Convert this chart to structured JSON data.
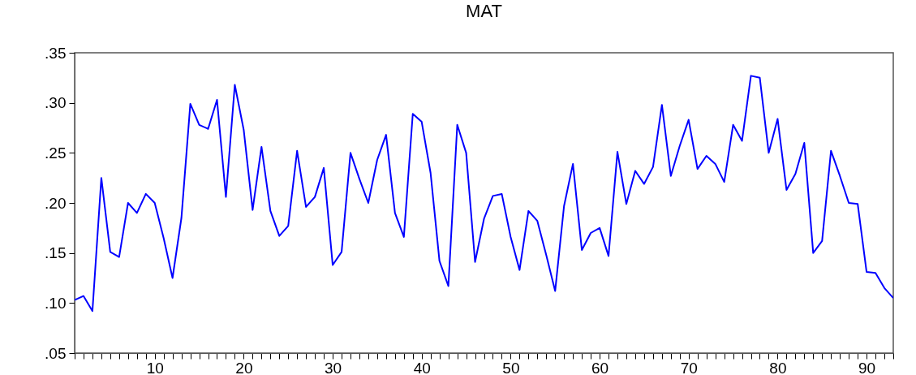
{
  "chart_data": {
    "type": "line",
    "title": "MAT",
    "x": [
      1,
      2,
      3,
      4,
      5,
      6,
      7,
      8,
      9,
      10,
      11,
      12,
      13,
      14,
      15,
      16,
      17,
      18,
      19,
      20,
      21,
      22,
      23,
      24,
      25,
      26,
      27,
      28,
      29,
      30,
      31,
      32,
      33,
      34,
      35,
      36,
      37,
      38,
      39,
      40,
      41,
      42,
      43,
      44,
      45,
      46,
      47,
      48,
      49,
      50,
      51,
      52,
      53,
      54,
      55,
      56,
      57,
      58,
      59,
      60,
      61,
      62,
      63,
      64,
      65,
      66,
      67,
      68,
      69,
      70,
      71,
      72,
      73,
      74,
      75,
      76,
      77,
      78,
      79,
      80,
      81,
      82,
      83,
      84,
      85,
      86,
      87,
      88,
      89,
      90,
      91,
      92,
      93
    ],
    "series": [
      {
        "color": "#0000ff",
        "values": [
          0.103,
          0.107,
          0.092,
          0.225,
          0.151,
          0.146,
          0.2,
          0.19,
          0.209,
          0.2,
          0.165,
          0.125,
          0.185,
          0.299,
          0.278,
          0.274,
          0.303,
          0.206,
          0.318,
          0.273,
          0.193,
          0.256,
          0.192,
          0.167,
          0.177,
          0.252,
          0.196,
          0.206,
          0.235,
          0.138,
          0.151,
          0.25,
          0.224,
          0.2,
          0.243,
          0.268,
          0.19,
          0.166,
          0.289,
          0.281,
          0.23,
          0.142,
          0.117,
          0.278,
          0.25,
          0.141,
          0.184,
          0.207,
          0.209,
          0.166,
          0.133,
          0.192,
          0.182,
          0.148,
          0.112,
          0.197,
          0.239,
          0.153,
          0.17,
          0.175,
          0.147,
          0.251,
          0.199,
          0.232,
          0.219,
          0.236,
          0.298,
          0.227,
          0.257,
          0.283,
          0.234,
          0.247,
          0.239,
          0.221,
          0.278,
          0.262,
          0.327,
          0.325,
          0.25,
          0.284,
          0.213,
          0.229,
          0.26,
          0.15,
          0.162,
          0.252,
          0.227,
          0.2,
          0.199,
          0.131,
          0.13,
          0.115,
          0.105
        ]
      }
    ],
    "xlim": [
      1,
      93
    ],
    "xticks": [
      {
        "value": 1,
        "label": null
      },
      {
        "value": 2,
        "label": null
      },
      {
        "value": 3,
        "label": null
      },
      {
        "value": 4,
        "label": null
      },
      {
        "value": 5,
        "label": null
      },
      {
        "value": 6,
        "label": null
      },
      {
        "value": 7,
        "label": null
      },
      {
        "value": 8,
        "label": null
      },
      {
        "value": 9,
        "label": null
      },
      10,
      {
        "value": 11,
        "label": null
      },
      {
        "value": 12,
        "label": null
      },
      {
        "value": 13,
        "label": null
      },
      {
        "value": 14,
        "label": null
      },
      {
        "value": 15,
        "label": null
      },
      {
        "value": 16,
        "label": null
      },
      {
        "value": 17,
        "label": null
      },
      {
        "value": 18,
        "label": null
      },
      {
        "value": 19,
        "label": null
      },
      20,
      {
        "value": 21,
        "label": null
      },
      {
        "value": 22,
        "label": null
      },
      {
        "value": 23,
        "label": null
      },
      {
        "value": 24,
        "label": null
      },
      {
        "value": 25,
        "label": null
      },
      {
        "value": 26,
        "label": null
      },
      {
        "value": 27,
        "label": null
      },
      {
        "value": 28,
        "label": null
      },
      {
        "value": 29,
        "label": null
      },
      30,
      {
        "value": 31,
        "label": null
      },
      {
        "value": 32,
        "label": null
      },
      {
        "value": 33,
        "label": null
      },
      {
        "value": 34,
        "label": null
      },
      {
        "value": 35,
        "label": null
      },
      {
        "value": 36,
        "label": null
      },
      {
        "value": 37,
        "label": null
      },
      {
        "value": 38,
        "label": null
      },
      {
        "value": 39,
        "label": null
      },
      40,
      {
        "value": 41,
        "label": null
      },
      {
        "value": 42,
        "label": null
      },
      {
        "value": 43,
        "label": null
      },
      {
        "value": 44,
        "label": null
      },
      {
        "value": 45,
        "label": null
      },
      {
        "value": 46,
        "label": null
      },
      {
        "value": 47,
        "label": null
      },
      {
        "value": 48,
        "label": null
      },
      {
        "value": 49,
        "label": null
      },
      50,
      {
        "value": 51,
        "label": null
      },
      {
        "value": 52,
        "label": null
      },
      {
        "value": 53,
        "label": null
      },
      {
        "value": 54,
        "label": null
      },
      {
        "value": 55,
        "label": null
      },
      {
        "value": 56,
        "label": null
      },
      {
        "value": 57,
        "label": null
      },
      {
        "value": 58,
        "label": null
      },
      {
        "value": 59,
        "label": null
      },
      60,
      {
        "value": 61,
        "label": null
      },
      {
        "value": 62,
        "label": null
      },
      {
        "value": 63,
        "label": null
      },
      {
        "value": 64,
        "label": null
      },
      {
        "value": 65,
        "label": null
      },
      {
        "value": 66,
        "label": null
      },
      {
        "value": 67,
        "label": null
      },
      {
        "value": 68,
        "label": null
      },
      {
        "value": 69,
        "label": null
      },
      70,
      {
        "value": 71,
        "label": null
      },
      {
        "value": 72,
        "label": null
      },
      {
        "value": 73,
        "label": null
      },
      {
        "value": 74,
        "label": null
      },
      {
        "value": 75,
        "label": null
      },
      {
        "value": 76,
        "label": null
      },
      {
        "value": 77,
        "label": null
      },
      {
        "value": 78,
        "label": null
      },
      {
        "value": 79,
        "label": null
      },
      80,
      {
        "value": 81,
        "label": null
      },
      {
        "value": 82,
        "label": null
      },
      {
        "value": 83,
        "label": null
      },
      {
        "value": 84,
        "label": null
      },
      {
        "value": 85,
        "label": null
      },
      {
        "value": 86,
        "label": null
      },
      {
        "value": 87,
        "label": null
      },
      {
        "value": 88,
        "label": null
      },
      {
        "value": 89,
        "label": null
      },
      90,
      {
        "value": 91,
        "label": null
      },
      {
        "value": 92,
        "label": null
      },
      {
        "value": 93,
        "label": null
      }
    ],
    "ylim": [
      0.05,
      0.35
    ],
    "yticks": [
      {
        "value": 0.05,
        "label": ".05"
      },
      {
        "value": 0.1,
        "label": ".10"
      },
      {
        "value": 0.15,
        "label": ".15"
      },
      {
        "value": 0.2,
        "label": ".20"
      },
      {
        "value": 0.25,
        "label": ".25"
      },
      {
        "value": 0.3,
        "label": ".30"
      },
      {
        "value": 0.35,
        "label": ".35"
      }
    ],
    "marker": "none",
    "line_style": "solid"
  }
}
